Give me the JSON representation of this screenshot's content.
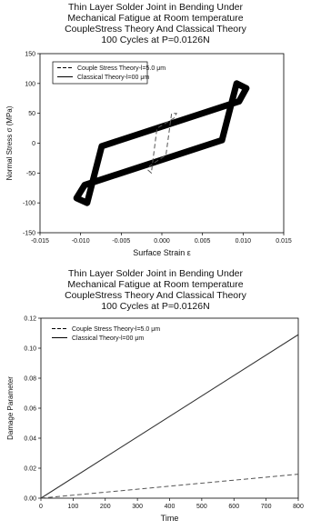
{
  "chart_data": [
    {
      "type": "line",
      "title_lines": [
        "Thin Layer Solder Joint in Bending Under",
        "Mechanical Fatigue at Room temperature",
        "CoupleStress Theory And Classical Theory",
        "100 Cycles at P=0.0126N"
      ],
      "xlabel": "Surface Strain ε",
      "ylabel": "Normal Stress σ (MPa)",
      "xlim": [
        -0.015,
        0.015
      ],
      "ylim": [
        -150,
        150
      ],
      "xticks": [
        "-0.015",
        "-0.010",
        "-0.005",
        "0.000",
        "0.005",
        "0.010",
        "0.015"
      ],
      "yticks": [
        "150",
        "100",
        "50",
        "0",
        "-50",
        "-100",
        "-150"
      ],
      "legend": [
        "Couple Stress Theory-l=5.0 μm",
        "Classical Theory-l=00 μm"
      ],
      "legend_position": "top-left",
      "series": [
        {
          "name": "Classical Theory-l=00 μm",
          "style": "solid",
          "color": "#000000",
          "values": [
            {
              "x": -0.0105,
              "y": -92
            },
            {
              "x": -0.0092,
              "y": -100
            },
            {
              "x": -0.0074,
              "y": -5
            },
            {
              "x": 0.0095,
              "y": 70
            },
            {
              "x": 0.0104,
              "y": 92
            },
            {
              "x": 0.0092,
              "y": 100
            },
            {
              "x": 0.0074,
              "y": 5
            },
            {
              "x": -0.0095,
              "y": -70
            }
          ]
        },
        {
          "name": "Couple Stress Theory-l=5.0 μm",
          "style": "dashed",
          "color": "#555555",
          "values": [
            {
              "x": -0.0017,
              "y": -45
            },
            {
              "x": -0.0013,
              "y": -50
            },
            {
              "x": -0.0006,
              "y": 25
            },
            {
              "x": 0.0015,
              "y": 42
            },
            {
              "x": 0.0018,
              "y": 50
            },
            {
              "x": 0.0012,
              "y": 50
            },
            {
              "x": 0.0005,
              "y": -20
            },
            {
              "x": -0.0015,
              "y": -38
            }
          ]
        }
      ]
    },
    {
      "type": "line",
      "title_lines": [
        "Thin Layer Solder Joint in Bending Under",
        "Mechanical Fatigue at Room temperature",
        "CoupleStress Theory And Classical Theory",
        "100 Cycles at P=0.0126N"
      ],
      "xlabel": "Time",
      "ylabel": "Damage Parameter",
      "xlim": [
        0,
        800
      ],
      "ylim": [
        0,
        0.12
      ],
      "xticks": [
        "0",
        "100",
        "200",
        "300",
        "400",
        "500",
        "600",
        "700",
        "800"
      ],
      "yticks": [
        "0.12",
        "0.10",
        "0.08",
        "0.06",
        "0.04",
        "0.02",
        "0.00"
      ],
      "legend": [
        "Couple Stress Theory-l=5.0 μm",
        "Classical Theory-l=00 μm"
      ],
      "legend_position": "top-left",
      "series": [
        {
          "name": "Couple Stress Theory-l=5.0 μm",
          "style": "dashed",
          "color": "#555555",
          "x": [
            0,
            800
          ],
          "values": [
            0.0,
            0.016
          ]
        },
        {
          "name": "Classical Theory-l=00 μm",
          "style": "solid",
          "color": "#333333",
          "x": [
            0,
            800
          ],
          "values": [
            0.0,
            0.109
          ]
        }
      ]
    }
  ]
}
